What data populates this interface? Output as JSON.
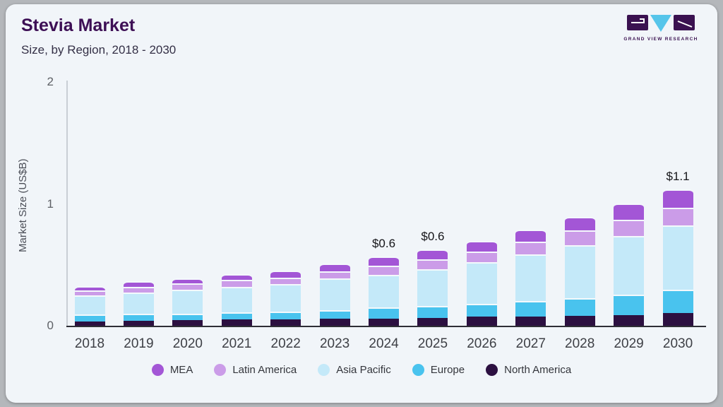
{
  "header": {
    "title": "Stevia Market",
    "subtitle": "Size, by Region, 2018 - 2030"
  },
  "logo": {
    "brand": "GRAND VIEW RESEARCH",
    "square_color": "#3a1150",
    "triangle_color": "#56c5ea"
  },
  "colors": {
    "card_bg": "#f1f5f9",
    "page_bg": "#b4b7bb",
    "title": "#3d0f55",
    "axis_line": "#c9ced5",
    "baseline": "#2e2e36"
  },
  "chart_data": {
    "type": "bar",
    "stacked": true,
    "title": "Stevia Market Size, by Region, 2018 - 2030",
    "xlabel": "",
    "ylabel": "Market Size (US$B)",
    "ylim": [
      0,
      2
    ],
    "yticks": [
      0,
      1,
      2
    ],
    "grid": false,
    "legend_position": "bottom",
    "categories": [
      2018,
      2019,
      2020,
      2021,
      2022,
      2023,
      2024,
      2025,
      2026,
      2027,
      2028,
      2029,
      2030
    ],
    "series": [
      {
        "name": "MEA",
        "color": "#a356d6",
        "values": [
          0.036,
          0.044,
          0.042,
          0.05,
          0.058,
          0.065,
          0.074,
          0.084,
          0.09,
          0.1,
          0.112,
          0.135,
          0.152
        ]
      },
      {
        "name": "Latin America",
        "color": "#cb9ce8",
        "values": [
          0.04,
          0.046,
          0.05,
          0.056,
          0.053,
          0.055,
          0.076,
          0.08,
          0.086,
          0.106,
          0.122,
          0.131,
          0.144
        ]
      },
      {
        "name": "Asia Pacific",
        "color": "#c4e9f9",
        "values": [
          0.158,
          0.175,
          0.195,
          0.21,
          0.226,
          0.264,
          0.27,
          0.303,
          0.342,
          0.38,
          0.432,
          0.482,
          0.528
        ]
      },
      {
        "name": "Europe",
        "color": "#49c3ee",
        "values": [
          0.055,
          0.058,
          0.057,
          0.059,
          0.064,
          0.068,
          0.088,
          0.096,
          0.106,
          0.128,
          0.148,
          0.168,
          0.193
        ]
      },
      {
        "name": "North America",
        "color": "#2c1041",
        "values": [
          0.035,
          0.04,
          0.044,
          0.05,
          0.054,
          0.058,
          0.06,
          0.066,
          0.074,
          0.076,
          0.08,
          0.088,
          0.103
        ]
      }
    ],
    "bar_totals": [
      0.32,
      0.36,
      0.39,
      0.43,
      0.46,
      0.51,
      0.57,
      0.63,
      0.7,
      0.79,
      0.89,
      1.0,
      1.12
    ],
    "bar_labels": [
      "",
      "",
      "",
      "",
      "",
      "",
      "$0.6",
      "$0.6",
      "",
      "",
      "",
      "",
      "$1.1"
    ]
  }
}
